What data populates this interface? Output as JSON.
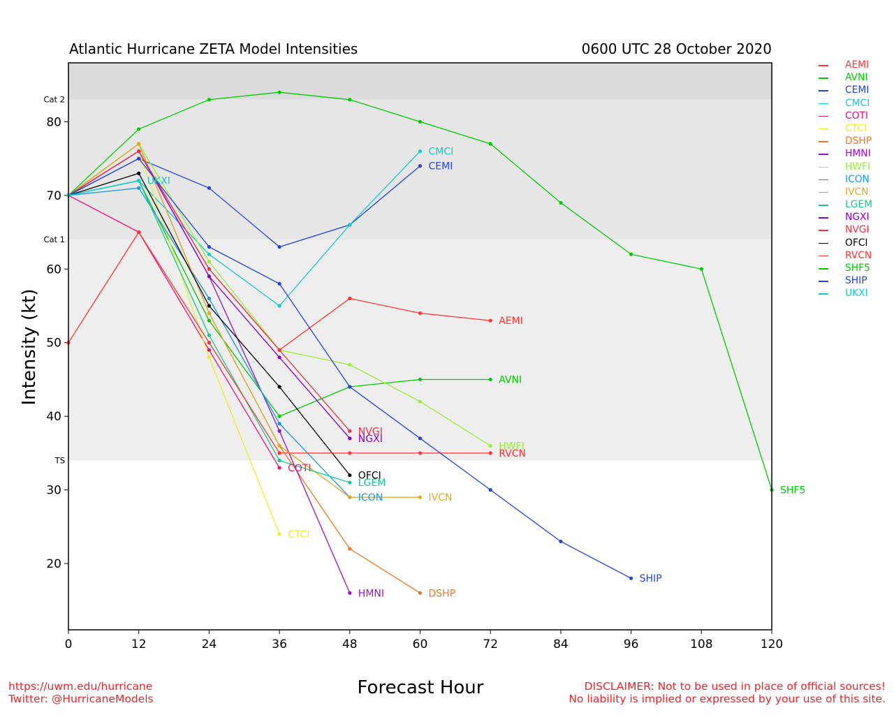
{
  "header": {
    "title": "Atlantic Hurricane ZETA Model Intensities",
    "date": "0600 UTC 28 October 2020"
  },
  "footer": {
    "left_line1": "https://uwm.edu/hurricane",
    "left_line2": "Twitter: @HurricaneModels",
    "right_line1": "DISCLAIMER: Not to be used in place of official sources!",
    "right_line2": "No liability is implied or expressed by your use of this site."
  },
  "chart_data": {
    "type": "line",
    "xlabel": "Forecast Hour",
    "ylabel": "Intensity (kt)",
    "xlim": [
      0,
      120
    ],
    "ylim": [
      11,
      88
    ],
    "x_ticks": [
      0,
      12,
      24,
      36,
      48,
      60,
      72,
      84,
      96,
      108,
      120
    ],
    "y_ticks": [
      20,
      30,
      40,
      50,
      60,
      70,
      80
    ],
    "category_bands": [
      {
        "label": "TS",
        "from": 34,
        "to": 64,
        "color": "#eeeeee"
      },
      {
        "label": "Cat 1",
        "from": 64,
        "to": 83,
        "color": "#e6e6e6"
      },
      {
        "label": "Cat 2",
        "from": 83,
        "to": 88,
        "color": "#dcdcdc"
      }
    ],
    "band_labels": [
      {
        "label": "Cat 2",
        "y": 83
      },
      {
        "label": "Cat 1",
        "y": 64
      },
      {
        "label": "TS",
        "y": 34
      }
    ],
    "legend_position": "right",
    "series": [
      {
        "name": "AEMI",
        "color": "#ff3333",
        "x": [
          0,
          12,
          24,
          36,
          48,
          60,
          72
        ],
        "y": [
          70,
          76,
          60,
          49,
          56,
          54,
          53
        ]
      },
      {
        "name": "AVNI",
        "color": "#00cc00",
        "x": [
          0,
          12,
          24,
          36,
          48,
          60,
          72
        ],
        "y": [
          70,
          72,
          53,
          40,
          44,
          45,
          45
        ]
      },
      {
        "name": "CEMI",
        "color": "#2244dd",
        "x": [
          0,
          12,
          24,
          36,
          48,
          60
        ],
        "y": [
          70,
          75,
          71,
          63,
          66,
          74
        ]
      },
      {
        "name": "CMCI",
        "color": "#11cccc",
        "x": [
          0,
          12,
          24,
          36,
          48,
          60
        ],
        "y": [
          70,
          72,
          62,
          55,
          66,
          76
        ]
      },
      {
        "name": "COTI",
        "color": "#ee1177",
        "x": [
          0,
          12,
          24,
          36
        ],
        "y": [
          70,
          65,
          49,
          33
        ]
      },
      {
        "name": "CTCI",
        "color": "#eeee22",
        "x": [
          0,
          12,
          24,
          36
        ],
        "y": [
          70,
          76,
          48,
          24
        ]
      },
      {
        "name": "DSHP",
        "color": "#ee7722",
        "x": [
          0,
          12,
          24,
          36,
          48,
          60
        ],
        "y": [
          70,
          77,
          54,
          36,
          22,
          16
        ]
      },
      {
        "name": "HMNI",
        "color": "#9911cc",
        "x": [
          0,
          12,
          24,
          36,
          48
        ],
        "y": [
          70,
          76,
          59,
          38,
          16
        ]
      },
      {
        "name": "HWFI",
        "color": "#99ee33",
        "x": [
          0,
          12,
          24,
          36,
          48,
          60,
          72
        ],
        "y": [
          70,
          77,
          61,
          49,
          47,
          42,
          36
        ]
      },
      {
        "name": "ICON",
        "color": "#1199ee",
        "x": [
          0,
          12,
          24,
          36,
          48
        ],
        "y": [
          70,
          71,
          56,
          39,
          29
        ]
      },
      {
        "name": "IVCN",
        "color": "#ddaa22",
        "x": [
          0,
          12,
          24,
          36,
          48,
          60
        ],
        "y": [
          70,
          77,
          54,
          36,
          29,
          29
        ]
      },
      {
        "name": "LGEM",
        "color": "#11cc88",
        "x": [
          0,
          12,
          24,
          36,
          48
        ],
        "y": [
          70,
          72,
          51,
          34,
          31
        ]
      },
      {
        "name": "NGXI",
        "color": "#8800cc",
        "x": [
          0,
          12,
          24,
          36,
          48
        ],
        "y": [
          70,
          76,
          59,
          48,
          37
        ]
      },
      {
        "name": "NVGI",
        "color": "#ee3344",
        "x": [
          0,
          12,
          24,
          36,
          48
        ],
        "y": [
          70,
          76,
          60,
          49,
          38
        ]
      },
      {
        "name": "OFCI",
        "color": "#000000",
        "x": [
          0,
          12,
          24,
          36,
          48
        ],
        "y": [
          70,
          73,
          55,
          44,
          32
        ]
      },
      {
        "name": "RVCN",
        "color": "#ff3333",
        "x": [
          0,
          12,
          24,
          36,
          48,
          60,
          72
        ],
        "y": [
          50,
          65,
          50,
          35,
          35,
          35,
          35
        ]
      },
      {
        "name": "SHF5",
        "color": "#00cc00",
        "x": [
          0,
          12,
          24,
          36,
          48,
          60,
          72,
          84,
          96,
          108,
          120
        ],
        "y": [
          70,
          79,
          83,
          84,
          83,
          80,
          77,
          69,
          62,
          60,
          30
        ]
      },
      {
        "name": "SHIP",
        "color": "#2244dd",
        "x": [
          0,
          12,
          24,
          36,
          48,
          60,
          72,
          84,
          96
        ],
        "y": [
          70,
          75,
          63,
          58,
          44,
          37,
          30,
          23,
          18
        ]
      },
      {
        "name": "UKXI",
        "color": "#11cccc",
        "x": [
          0,
          12
        ],
        "y": [
          70,
          72
        ]
      }
    ]
  }
}
